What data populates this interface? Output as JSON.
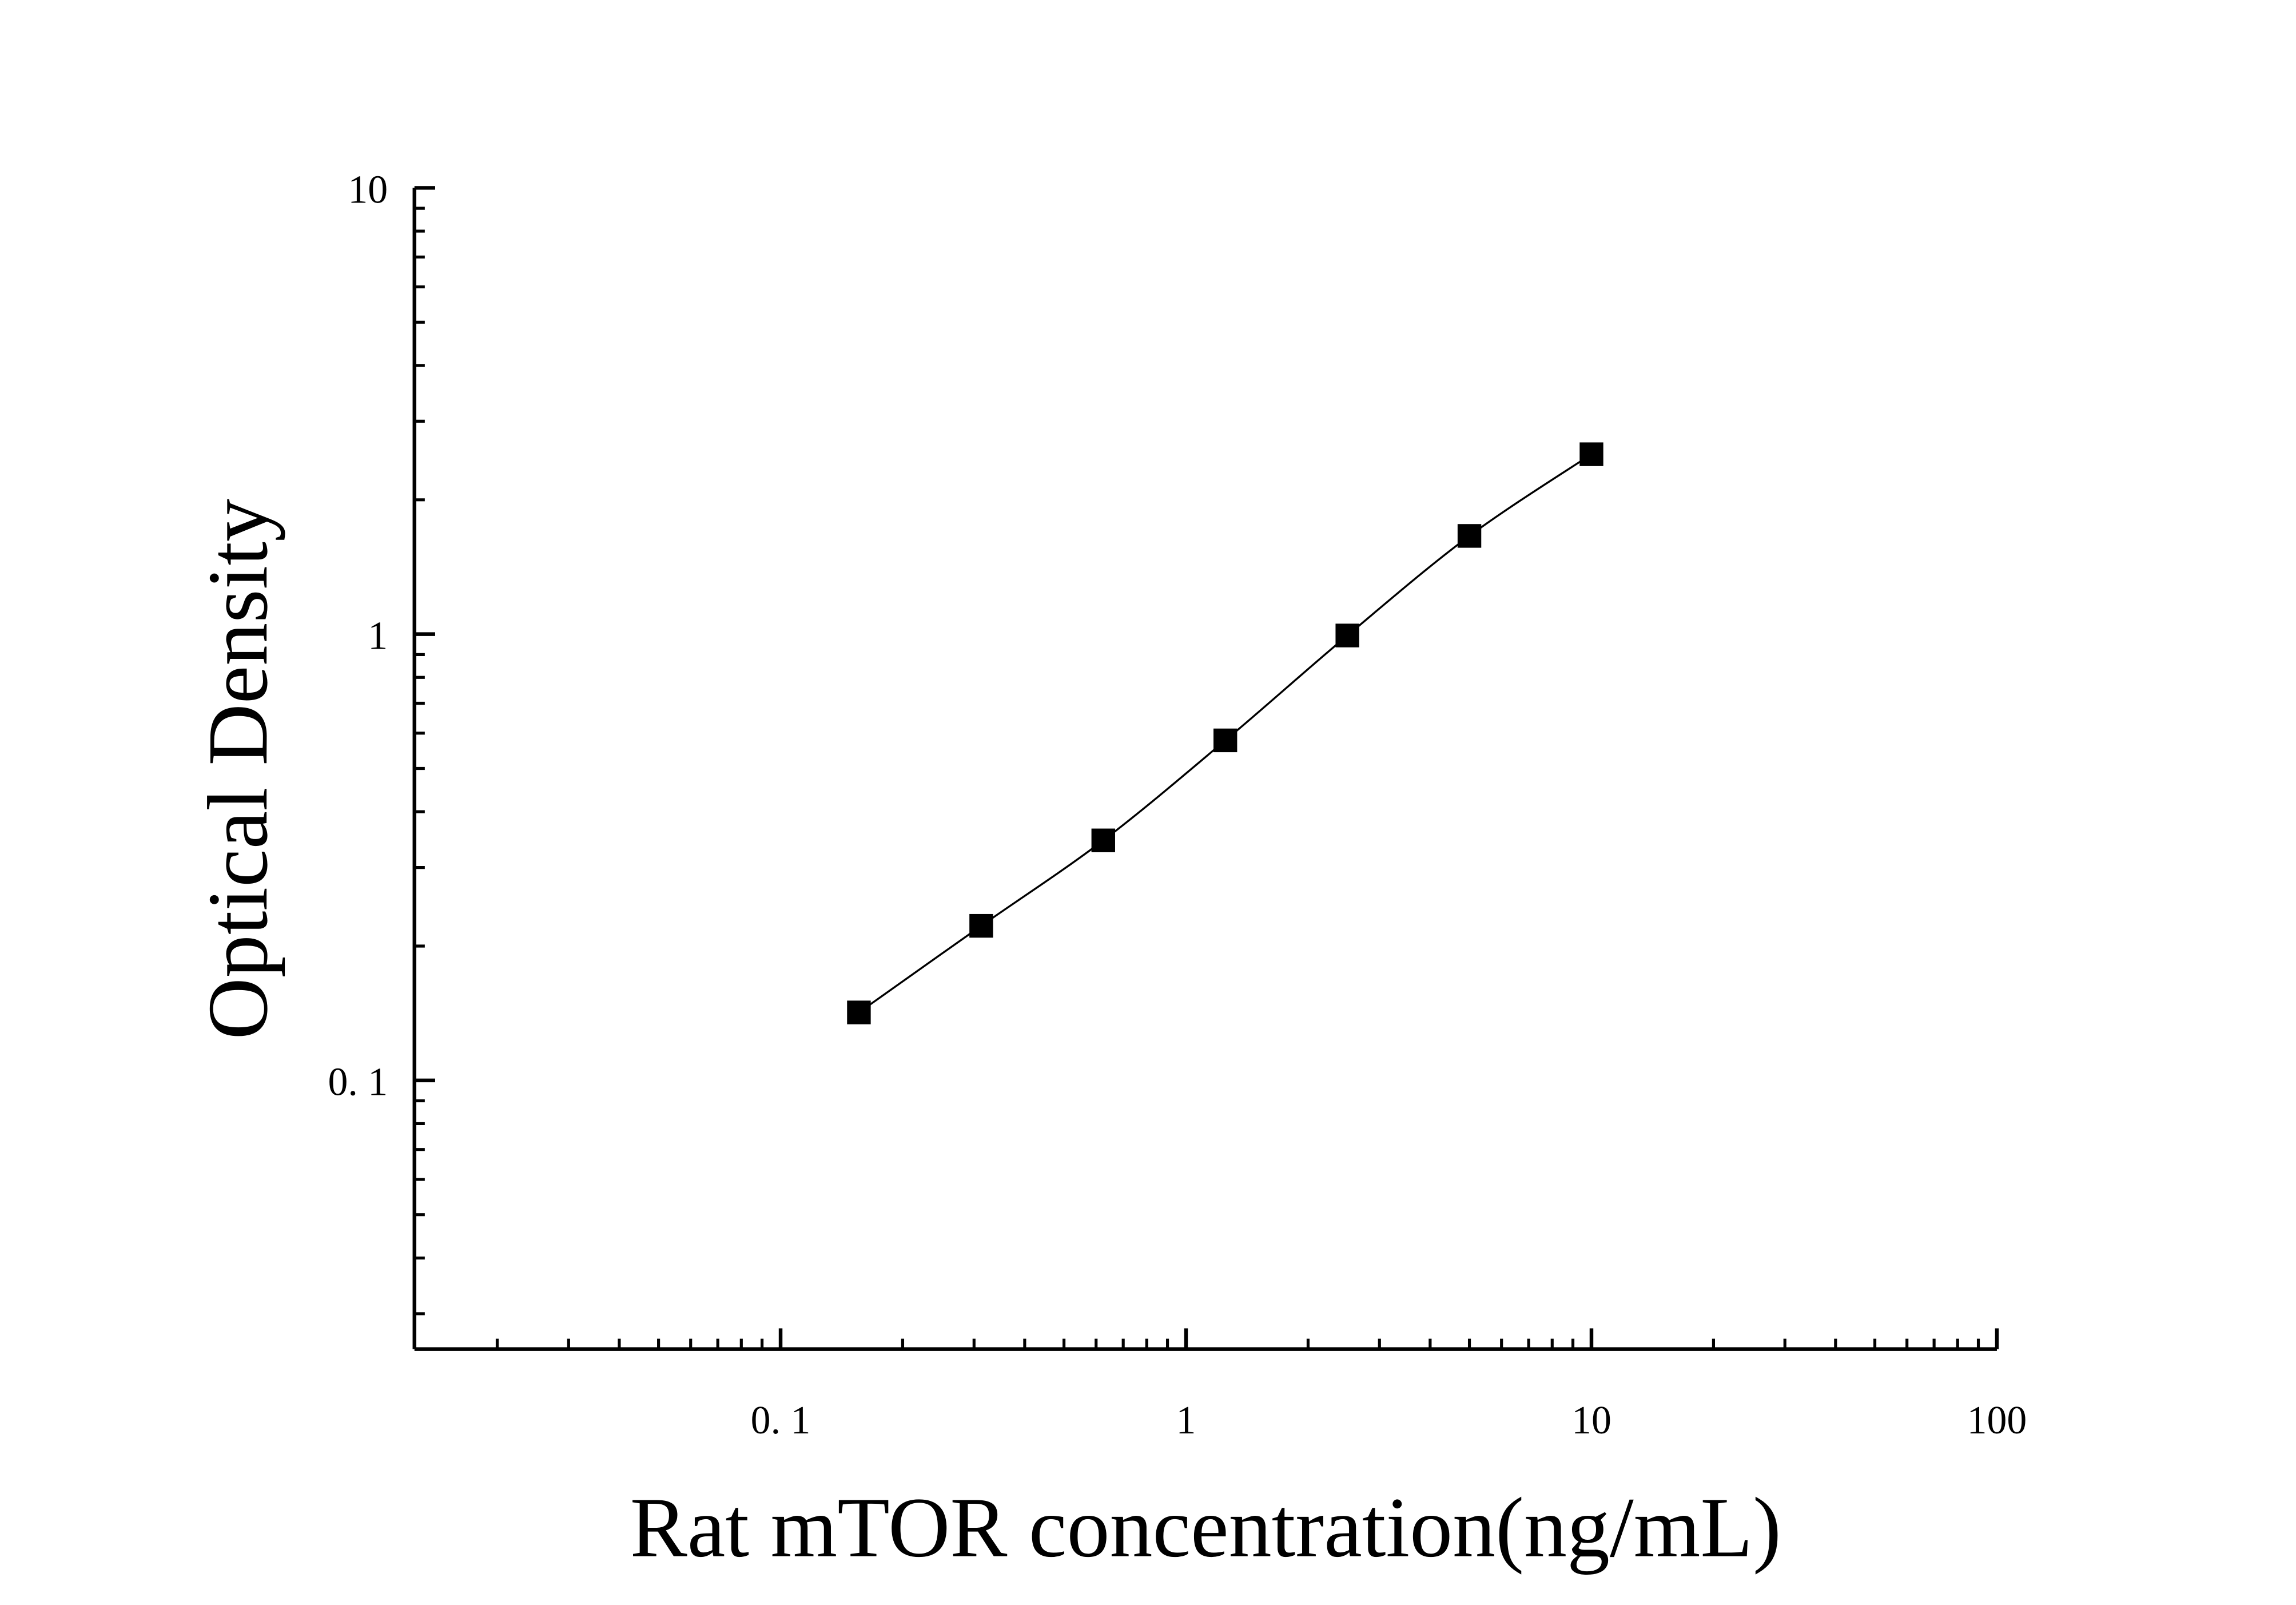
{
  "chart_data": {
    "type": "scatter",
    "title": "",
    "xlabel": "Rat mTOR concentration(ng/mL)",
    "ylabel": "Optical Density",
    "xscale": "log",
    "yscale": "log",
    "xlim": [
      0.0125,
      100
    ],
    "ylim": [
      0.025,
      10
    ],
    "x_ticks": [
      0.1,
      1,
      10,
      100
    ],
    "x_tick_labels": [
      "0. 1",
      "1",
      "10",
      "100"
    ],
    "y_ticks": [
      0.1,
      1,
      10
    ],
    "y_tick_labels": [
      "0. 1",
      "1",
      "10"
    ],
    "grid": false,
    "legend": "none",
    "marker": "square",
    "fit_curve": true,
    "color": "#000000",
    "x": [
      0.156,
      0.3125,
      0.625,
      1.25,
      2.5,
      5,
      10
    ],
    "y": [
      0.142,
      0.222,
      0.345,
      0.578,
      0.993,
      1.66,
      2.53
    ]
  }
}
